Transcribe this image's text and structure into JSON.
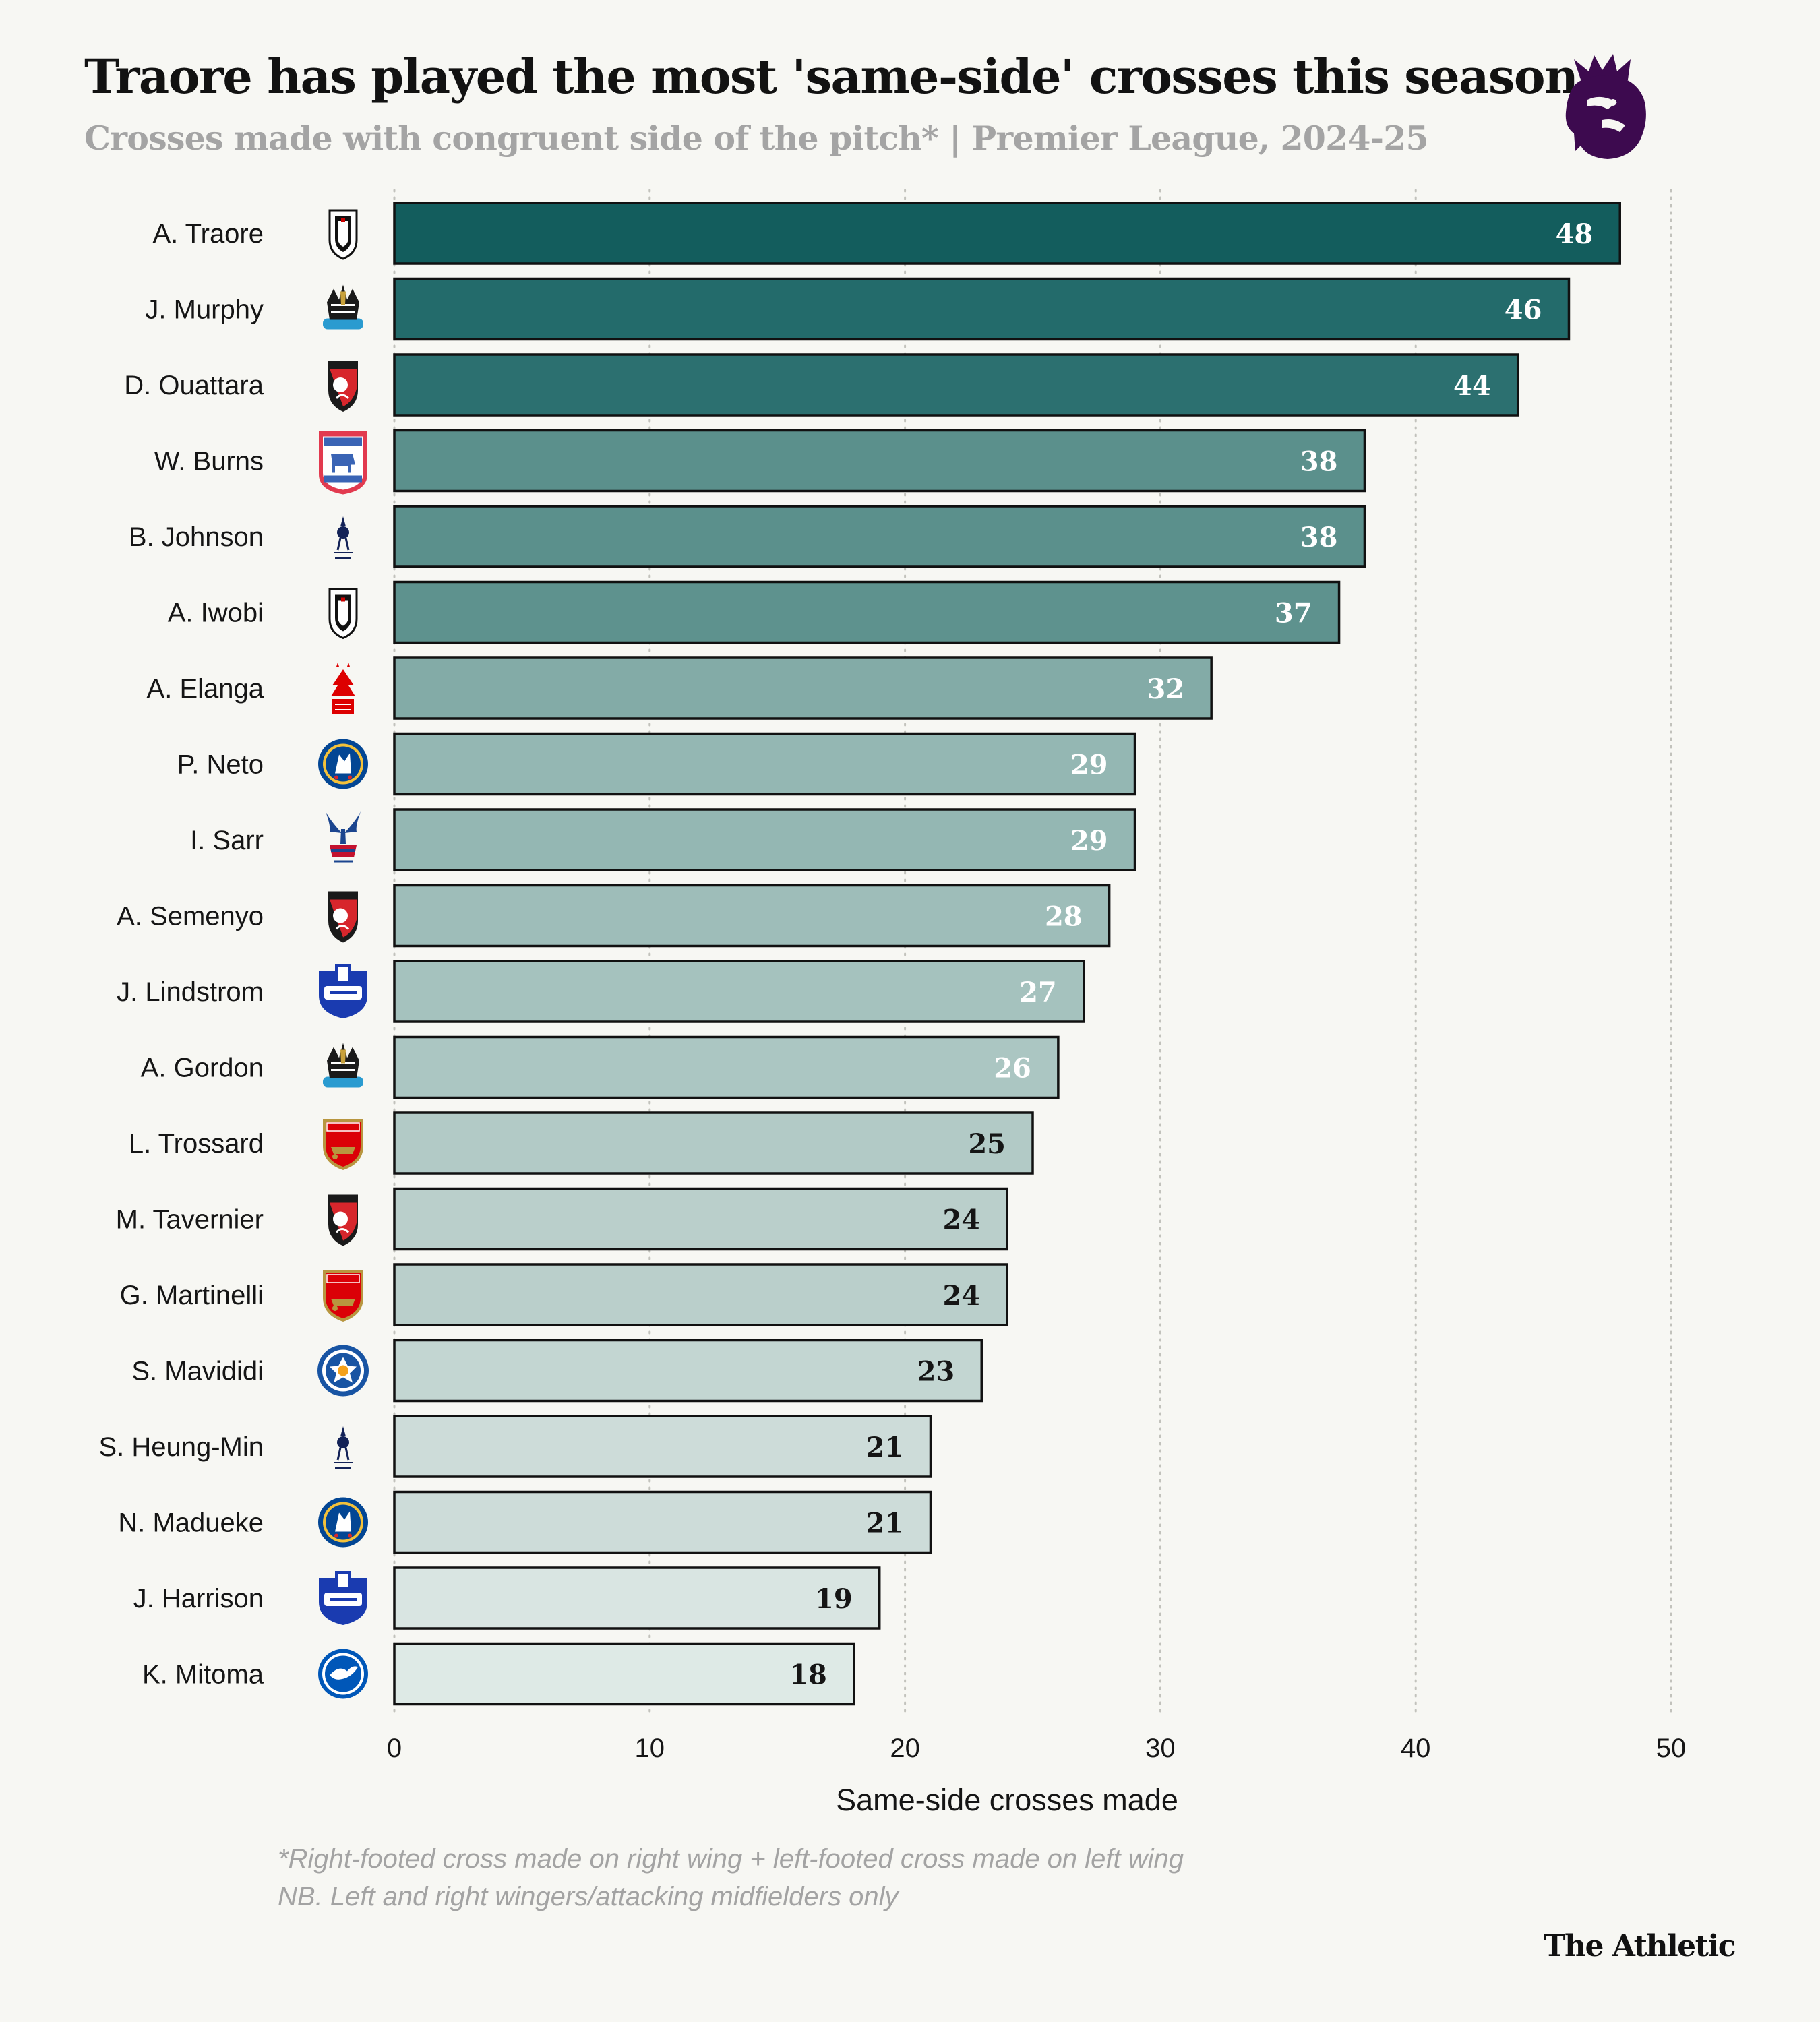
{
  "header": {
    "title": "Traore has played the most 'same-side' crosses this season",
    "subtitle": "Crosses made with congruent side of the pitch* | Premier League, 2024-25",
    "logo_icon": "premier-league-lion-icon"
  },
  "chart_data": {
    "type": "bar",
    "orientation": "horizontal",
    "title": "Traore has played the most 'same-side' crosses this season",
    "xlabel": "Same-side crosses made",
    "ylabel": "",
    "xlim": [
      0,
      50
    ],
    "xticks": [
      0,
      10,
      20,
      30,
      40,
      50
    ],
    "grid": "vertical dotted",
    "categories": [
      "A. Traore",
      "J. Murphy",
      "D. Ouattara",
      "W. Burns",
      "B. Johnson",
      "A. Iwobi",
      "A. Elanga",
      "P. Neto",
      "I. Sarr",
      "A. Semenyo",
      "J. Lindstrom",
      "A. Gordon",
      "L. Trossard",
      "M. Tavernier",
      "G. Martinelli",
      "S. Mavididi",
      "S. Heung-Min",
      "N. Madueke",
      "J. Harrison",
      "K. Mitoma"
    ],
    "values": [
      48,
      46,
      44,
      38,
      38,
      37,
      32,
      29,
      29,
      28,
      27,
      26,
      25,
      24,
      24,
      23,
      21,
      21,
      19,
      18
    ],
    "clubs": [
      "fulham-crest-icon",
      "newcastle-crest-icon",
      "bournemouth-crest-icon",
      "ipswich-crest-icon",
      "tottenham-crest-icon",
      "fulham-crest-icon",
      "nottingham-forest-crest-icon",
      "chelsea-crest-icon",
      "crystal-palace-crest-icon",
      "bournemouth-crest-icon",
      "everton-crest-icon",
      "newcastle-crest-icon",
      "arsenal-crest-icon",
      "bournemouth-crest-icon",
      "arsenal-crest-icon",
      "leicester-crest-icon",
      "tottenham-crest-icon",
      "chelsea-crest-icon",
      "everton-crest-icon",
      "brighton-crest-icon"
    ],
    "colors": [
      "#135d5d",
      "#236b6b",
      "#2c7070",
      "#5b908c",
      "#5b908c",
      "#5e928e",
      "#83aba7",
      "#94b7b3",
      "#94b7b3",
      "#9ebdb9",
      "#a5c2be",
      "#abc6c2",
      "#b2cac6",
      "#bacfcb",
      "#bacfcb",
      "#c3d6d2",
      "#cddcd9",
      "#cddcd9",
      "#d9e5e2",
      "#deeae6"
    ],
    "label_colors": [
      "#ffffff",
      "#ffffff",
      "#ffffff",
      "#ffffff",
      "#ffffff",
      "#ffffff",
      "#ffffff",
      "#ffffff",
      "#ffffff",
      "#ffffff",
      "#ffffff",
      "#ffffff",
      "#151515",
      "#151515",
      "#151515",
      "#151515",
      "#151515",
      "#151515",
      "#151515",
      "#151515"
    ]
  },
  "footnotes": {
    "line1": "*Right-footed cross made on right wing + left-footed cross made on left wing",
    "line2": "NB. Left and right wingers/attacking midfielders only"
  },
  "brand": "The Athletic"
}
